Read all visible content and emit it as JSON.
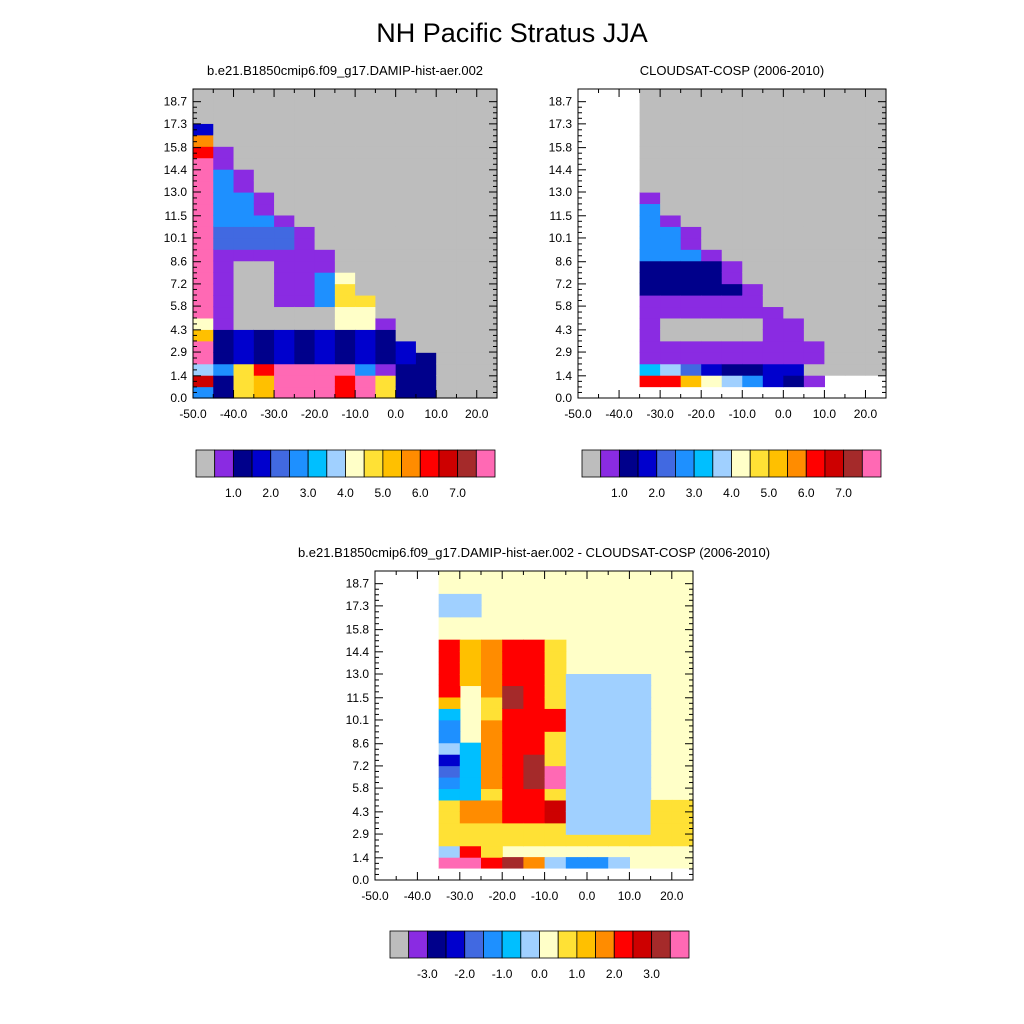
{
  "figure": {
    "title": "NH Pacific Stratus JJA"
  },
  "palette": [
    "#bdbdbd",
    "#8a2be2",
    "#00008b",
    "#0000cd",
    "#4169e1",
    "#1e90ff",
    "#00bfff",
    "#a0d0ff",
    "#ffffc8",
    "#ffe135",
    "#ffc000",
    "#ff8c00",
    "#ff0000",
    "#cd0000",
    "#a52a2a",
    "#ff69b4"
  ],
  "chart_data": [
    {
      "type": "heatmap",
      "panel": "model",
      "title": "b.e21.B1850cmip6.f09_g17.DAMIP-hist-aer.002",
      "x_ticks": [
        "-50.0",
        "-40.0",
        "-30.0",
        "-20.0",
        "-10.0",
        "0.0",
        "10.0",
        "20.0"
      ],
      "x_tick_values": [
        -50,
        -40,
        -30,
        -20,
        -10,
        0,
        10,
        20
      ],
      "xlim": [
        -50,
        25
      ],
      "y_ticks": [
        "0.0",
        "1.4",
        "2.9",
        "4.3",
        "5.8",
        "7.2",
        "8.6",
        "10.1",
        "11.5",
        "13.0",
        "14.4",
        "15.8",
        "17.3",
        "18.7"
      ],
      "ylim": [
        0,
        19.5
      ],
      "colorbar_labels": [
        "1.0",
        "2.0",
        "3.0",
        "4.0",
        "5.0",
        "6.0",
        "7.0"
      ],
      "x_centers": [
        -47.5,
        -42.5,
        -37.5,
        -32.5,
        -27.5,
        -22.5,
        -17.5,
        -12.5,
        -7.5,
        -2.5,
        2.5,
        7.5,
        12.5,
        17.5,
        22.5
      ],
      "y_bins_note": "row 0 = bottom level (0.0-0.72 km), 27 levels",
      "grid": [
        "4419B00000000000",
        "C2942FFF55000000",
        "D8A5EEFFFCE200000",
        "F99586776E33000",
        "E8C2222222330000",
        "F4232211122322000",
        "F111111221232100",
        "89112222633321000",
        "A512222111121100",
        "B8111222552211000",
        "81118001159611000",
        "F8810001599911000",
        "ED188001599911000",
        "C1180003598801000",
        "8118000358910000",
        "F2118001558811000",
        "8222113118870000",
        "F1222111118100000",
        "F5566155651000000",
        "F5664256321000000",
        "F5554332121000000",
        "F2222321100000000",
        "F3323111100000000",
        "F3111110000000000",
        "D00000000000000000",
        "C0000000000000000",
        "200000000000000000"
      ]
    },
    {
      "type": "heatmap",
      "panel": "obs",
      "title": "CLOUDSAT-COSP (2006-2010)",
      "x_ticks": [
        "-50.0",
        "-40.0",
        "-30.0",
        "-20.0",
        "-10.0",
        "0.0",
        "10.0",
        "20.0"
      ],
      "x_tick_values": [
        -50,
        -40,
        -30,
        -20,
        -10,
        0,
        10,
        20
      ],
      "xlim": [
        -50,
        25
      ],
      "y_ticks": [
        "0.0",
        "1.4",
        "2.9",
        "4.3",
        "5.8",
        "7.2",
        "8.6",
        "10.1",
        "11.5",
        "13.0",
        "14.4",
        "15.8",
        "17.3",
        "18.7"
      ],
      "ylim": [
        0,
        19.5
      ],
      "colorbar_labels": [
        "1.0",
        "2.0",
        "3.0",
        "4.0",
        "5.0",
        "6.0",
        "7.0"
      ],
      "obs_start_col": 3,
      "grid": [
        "------------------",
        "CCB8787321--------",
        "A9D87632221110----",
        "74311122121111----",
        "7177744111111-----",
        "6111111121111-----",
        "61111111111111----",
        "611000001111111---",
        "61000000011111----",
        "611000000011111---",
        "111111111111111---",
        "22222221111111----",
        "2222224222111-----",
        "2222222222111-----",
        "6555442222111-----",
        "6565574222221-----",
        "6655565212221-----",
        "6655555312221-----",
        "6566552152221-----",
        "6566655122110-----",
        "1221121211100-----",
        "1111121000000-----",
        "1100000000000-----",
        "0000000000000-----",
        "0000000000000-----",
        "0000000000000-----",
        "0000000000000-----"
      ]
    },
    {
      "type": "heatmap",
      "panel": "difference",
      "title": "b.e21.B1850cmip6.f09_g17.DAMIP-hist-aer.002 - CLOUDSAT-COSP (2006-2010)",
      "x_ticks": [
        "-50.0",
        "-40.0",
        "-30.0",
        "-20.0",
        "-10.0",
        "0.0",
        "10.0",
        "20.0"
      ],
      "x_tick_values": [
        -50,
        -40,
        -30,
        -20,
        -10,
        0,
        10,
        20
      ],
      "xlim": [
        -50,
        25
      ],
      "y_ticks": [
        "0.0",
        "1.4",
        "2.9",
        "4.3",
        "5.8",
        "7.2",
        "8.6",
        "10.1",
        "11.5",
        "13.0",
        "14.4",
        "15.8",
        "17.3",
        "18.7"
      ],
      "ylim": [
        0,
        19.5
      ],
      "colorbar_labels": [
        "-3.0",
        "-2.0",
        "-1.0",
        "0.0",
        "1.0",
        "2.0",
        "3.0"
      ]
    }
  ]
}
